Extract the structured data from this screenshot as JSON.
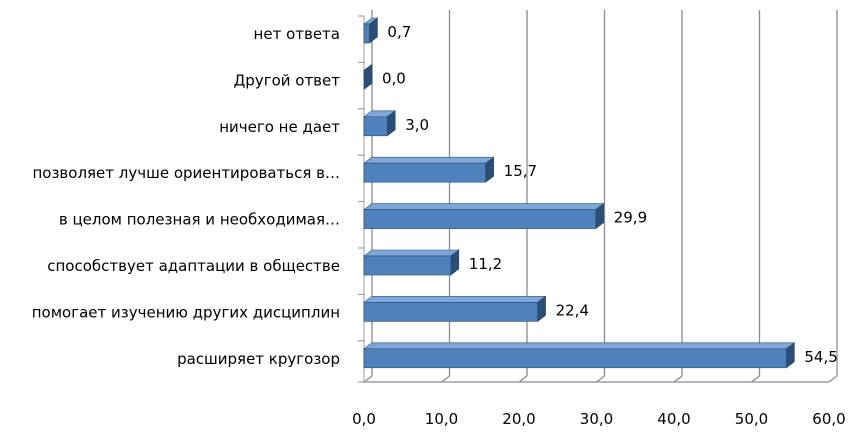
{
  "chart_data": {
    "type": "bar",
    "orientation": "horizontal",
    "style": "3d",
    "categories": [
      "нет ответа",
      "Другой ответ",
      "ничего не дает",
      "позволяет лучше ориентироваться в…",
      "в целом полезная и необходимая…",
      "способствует адаптации в обществе",
      "помогает изучению других дисциплин",
      "расширяет кругозор"
    ],
    "values": [
      0.7,
      0.0,
      3.0,
      15.7,
      29.9,
      11.2,
      22.4,
      54.5
    ],
    "value_labels": [
      "0,7",
      "0,0",
      "3,0",
      "15,7",
      "29,9",
      "11,2",
      "22,4",
      "54,5"
    ],
    "xlim": [
      0,
      60
    ],
    "ticks": [
      0,
      10,
      20,
      30,
      40,
      50,
      60
    ],
    "tick_labels": [
      "0,0",
      "10,0",
      "20,0",
      "30,0",
      "40,0",
      "50,0",
      "60,0"
    ],
    "grid": "vertical",
    "legend": "none",
    "colors": {
      "bar_front": "#4f81bd",
      "bar_top": "#7ea6d8",
      "bar_side": "#2c4d75",
      "grid": "#8c8c8c",
      "wall": "#bfbfbf"
    }
  }
}
